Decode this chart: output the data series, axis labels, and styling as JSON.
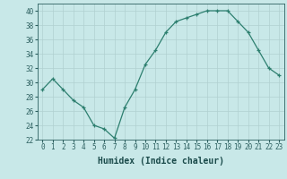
{
  "x": [
    0,
    1,
    2,
    3,
    4,
    5,
    6,
    7,
    8,
    9,
    10,
    11,
    12,
    13,
    14,
    15,
    16,
    17,
    18,
    19,
    20,
    21,
    22,
    23
  ],
  "y": [
    29.0,
    30.5,
    29.0,
    27.5,
    26.5,
    24.0,
    23.5,
    22.2,
    26.5,
    29.0,
    32.5,
    34.5,
    37.0,
    38.5,
    39.0,
    39.5,
    40.0,
    40.0,
    40.0,
    38.5,
    37.0,
    34.5,
    32.0,
    31.0
  ],
  "xlabel": "Humidex (Indice chaleur)",
  "ylim": [
    22,
    41
  ],
  "xlim": [
    -0.5,
    23.5
  ],
  "yticks": [
    22,
    24,
    26,
    28,
    30,
    32,
    34,
    36,
    38,
    40
  ],
  "xticks": [
    0,
    1,
    2,
    3,
    4,
    5,
    6,
    7,
    8,
    9,
    10,
    11,
    12,
    13,
    14,
    15,
    16,
    17,
    18,
    19,
    20,
    21,
    22,
    23
  ],
  "line_color": "#2d7f6f",
  "marker": "+",
  "markersize": 3,
  "linewidth": 0.9,
  "bg_color": "#c8e8e8",
  "grid_color": "#b0d0d0",
  "tick_color": "#2d6060",
  "label_color": "#1a4a4a",
  "font_family": "monospace",
  "tick_fontsize": 5.5,
  "xlabel_fontsize": 7
}
